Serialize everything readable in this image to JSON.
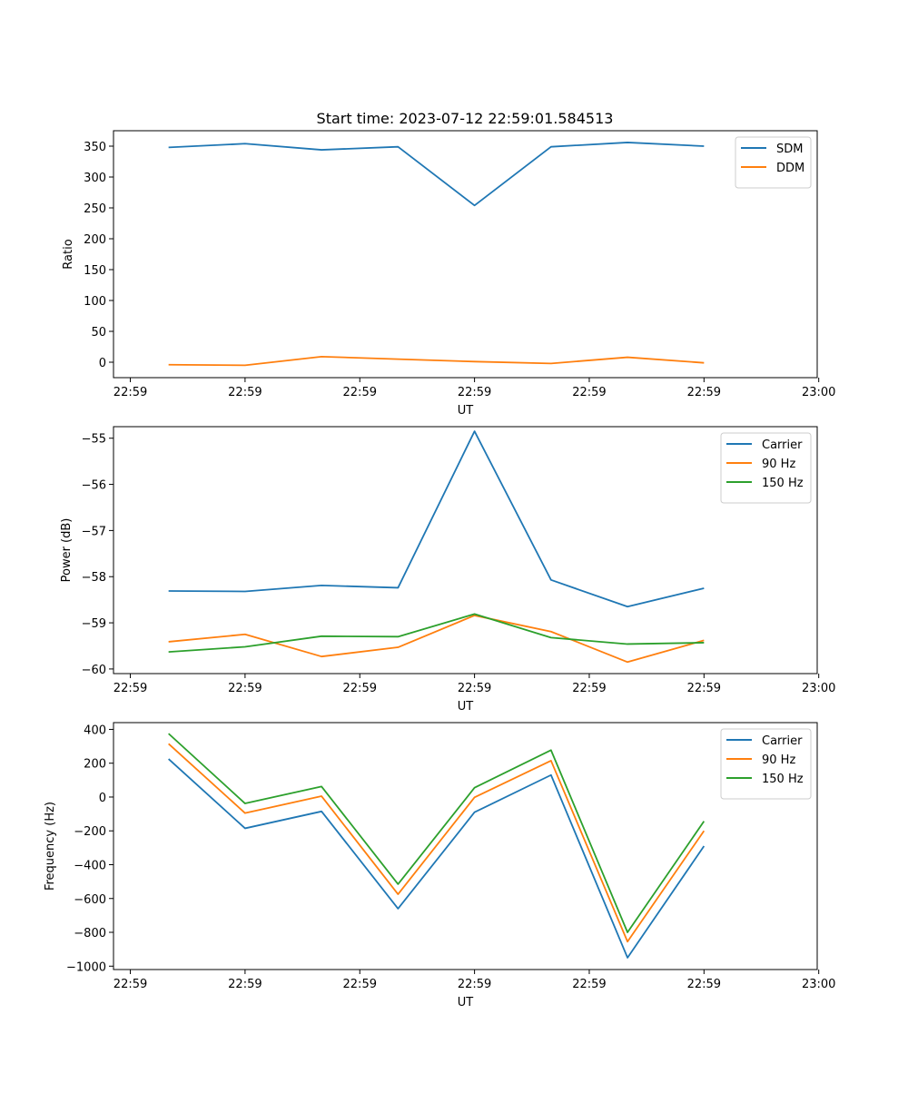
{
  "figure_title": "Start time: 2023-07-12 22:59:01.584513",
  "chart_data": [
    {
      "type": "line",
      "title": "Start time: 2023-07-12 22:59:01.584513",
      "xlabel": "UT",
      "ylabel": "Ratio",
      "x_tick_labels": [
        "22:59",
        "22:59",
        "22:59",
        "22:59",
        "22:59",
        "22:59",
        "23:00"
      ],
      "x": [
        0,
        1,
        2,
        3,
        4,
        5,
        6,
        7
      ],
      "xlim": [
        -0.72,
        8.48
      ],
      "ylim": [
        -25,
        375
      ],
      "y_ticks": [
        0,
        50,
        100,
        150,
        200,
        250,
        300,
        350
      ],
      "y_tick_labels": [
        "0",
        "50",
        "100",
        "150",
        "200",
        "250",
        "300",
        "350"
      ],
      "legend_position": "top-right",
      "series": [
        {
          "name": "SDM",
          "color": "#1f77b4",
          "values": [
            348,
            354,
            344,
            349,
            254,
            349,
            356,
            350
          ]
        },
        {
          "name": "DDM",
          "color": "#ff7f0e",
          "values": [
            -4,
            -5,
            9,
            5,
            1,
            -2,
            8,
            -1
          ]
        }
      ]
    },
    {
      "type": "line",
      "title": "",
      "xlabel": "UT",
      "ylabel": "Power (dB)",
      "x_tick_labels": [
        "22:59",
        "22:59",
        "22:59",
        "22:59",
        "22:59",
        "22:59",
        "23:00"
      ],
      "x": [
        0,
        1,
        2,
        3,
        4,
        5,
        6,
        7
      ],
      "xlim": [
        -0.72,
        8.48
      ],
      "ylim": [
        -60.1,
        -54.75
      ],
      "y_ticks": [
        -60,
        -59,
        -58,
        -57,
        -56,
        -55
      ],
      "y_tick_labels": [
        "−60",
        "−59",
        "−58",
        "−57",
        "−56",
        "−55"
      ],
      "legend_position": "top-right",
      "series": [
        {
          "name": "Carrier",
          "color": "#1f77b4",
          "values": [
            -58.31,
            -58.32,
            -58.19,
            -58.24,
            -54.85,
            -58.07,
            -58.65,
            -58.25
          ]
        },
        {
          "name": "90 Hz",
          "color": "#ff7f0e",
          "values": [
            -59.41,
            -59.25,
            -59.73,
            -59.53,
            -58.84,
            -59.19,
            -59.85,
            -59.38
          ]
        },
        {
          "name": "150 Hz",
          "color": "#2ca02c",
          "values": [
            -59.63,
            -59.52,
            -59.29,
            -59.3,
            -58.81,
            -59.32,
            -59.46,
            -59.43
          ]
        }
      ]
    },
    {
      "type": "line",
      "title": "",
      "xlabel": "UT",
      "ylabel": "Frequency (Hz)",
      "x_tick_labels": [
        "22:59",
        "22:59",
        "22:59",
        "22:59",
        "22:59",
        "22:59",
        "23:00"
      ],
      "x": [
        0,
        1,
        2,
        3,
        4,
        5,
        6,
        7
      ],
      "xlim": [
        -0.72,
        8.48
      ],
      "ylim": [
        -1020,
        440
      ],
      "y_ticks": [
        -1000,
        -800,
        -600,
        -400,
        -200,
        0,
        200,
        400
      ],
      "y_tick_labels": [
        "−1000",
        "−800",
        "−600",
        "−400",
        "−200",
        "0",
        "200",
        "400"
      ],
      "legend_position": "top-right",
      "series": [
        {
          "name": "Carrier",
          "color": "#1f77b4",
          "values": [
            225,
            -185,
            -85,
            -660,
            -90,
            130,
            -950,
            -290
          ]
        },
        {
          "name": "90 Hz",
          "color": "#ff7f0e",
          "values": [
            315,
            -95,
            5,
            -575,
            -2,
            215,
            -855,
            -200
          ]
        },
        {
          "name": "150 Hz",
          "color": "#2ca02c",
          "values": [
            375,
            -38,
            62,
            -515,
            55,
            277,
            -800,
            -143
          ]
        }
      ]
    }
  ]
}
